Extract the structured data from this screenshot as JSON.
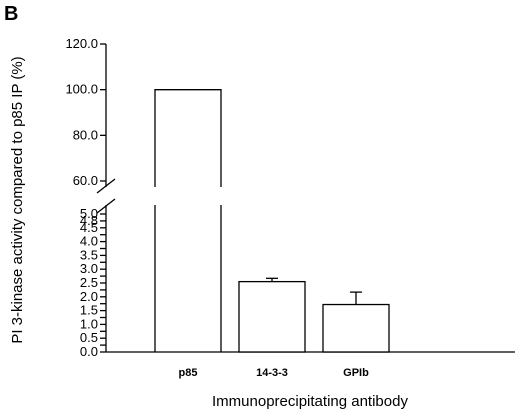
{
  "panel_label": "B",
  "chart_data": {
    "type": "bar",
    "title": "",
    "xlabel": "Immunoprecipitating antibody",
    "ylabel": "PI 3-kinase activity compared to p85 IP (%)",
    "categories": [
      "p85",
      "14-3-3",
      "GPIb"
    ],
    "values": [
      100.0,
      2.55,
      1.72
    ],
    "error_upper": [
      0,
      0.12,
      0.45
    ],
    "axis_break": {
      "lower_range": [
        0,
        5
      ],
      "upper_range": [
        60,
        120
      ]
    },
    "lower_ticks": [
      {
        "value": 0.0,
        "label": "0.0"
      },
      {
        "value": 0.25,
        "label": ""
      },
      {
        "value": 0.5,
        "label": "0.5"
      },
      {
        "value": 0.75,
        "label": ""
      },
      {
        "value": 1.0,
        "label": "1.0"
      },
      {
        "value": 1.25,
        "label": ""
      },
      {
        "value": 1.5,
        "label": "1.5"
      },
      {
        "value": 1.75,
        "label": ""
      },
      {
        "value": 2.0,
        "label": "2.0"
      },
      {
        "value": 2.25,
        "label": ""
      },
      {
        "value": 2.5,
        "label": "2.5"
      },
      {
        "value": 2.75,
        "label": ""
      },
      {
        "value": 3.0,
        "label": "3.0"
      },
      {
        "value": 3.25,
        "label": ""
      },
      {
        "value": 3.5,
        "label": "3.5"
      },
      {
        "value": 3.75,
        "label": ""
      },
      {
        "value": 4.0,
        "label": "4.0"
      },
      {
        "value": 4.25,
        "label": ""
      },
      {
        "value": 4.5,
        "label": "4.5"
      },
      {
        "value": 4.75,
        "label": "4.8"
      },
      {
        "value": 5.0,
        "label": "5.0"
      }
    ],
    "upper_ticks": [
      {
        "value": 60,
        "label": "60.0"
      },
      {
        "value": 80,
        "label": "80.0"
      },
      {
        "value": 100,
        "label": "100.0"
      },
      {
        "value": 120,
        "label": "120.0"
      }
    ],
    "grid": false,
    "legend": "none",
    "bar_fill": "#ffffff",
    "bar_stroke": "#000000"
  }
}
